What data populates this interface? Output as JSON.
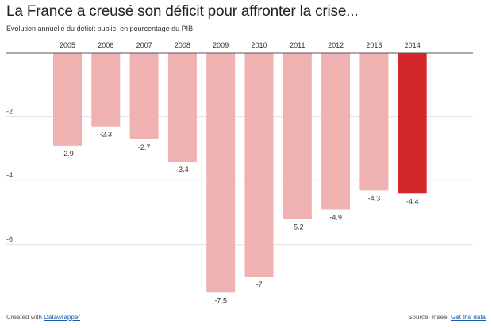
{
  "title": "La France a creusé son déficit pour affronter la crise...",
  "subtitle": "Évolution annuelle du déficit public, en pourcentage du PIB",
  "footer": {
    "created_prefix": "Created with ",
    "created_link": "Datawrapper",
    "source_prefix": "Source: Insee, ",
    "source_link": "Get the data"
  },
  "colors": {
    "bar": "#efb1b1",
    "bar_highlight": "#d3272c",
    "grid": "#e2e2e2",
    "baseline": "#555555"
  },
  "chart_data": {
    "type": "bar",
    "title": "La France a creusé son déficit pour affronter la crise...",
    "subtitle": "Évolution annuelle du déficit public, en pourcentage du PIB",
    "categories": [
      "2005",
      "2006",
      "2007",
      "2008",
      "2009",
      "2010",
      "2011",
      "2012",
      "2013",
      "2014"
    ],
    "values": [
      -2.9,
      -2.3,
      -2.7,
      -3.4,
      -7.5,
      -7,
      -5.2,
      -4.9,
      -4.3,
      -4.4
    ],
    "value_labels": [
      "-2.9",
      "-2.3",
      "-2.7",
      "-3.4",
      "-7.5",
      "-7",
      "-5.2",
      "-4.9",
      "-4.3",
      "-4.4"
    ],
    "highlight": "2014",
    "yticks": [
      -2,
      -4,
      -6
    ],
    "ytick_labels": [
      "-2",
      "-4",
      "-6"
    ],
    "ylim": [
      -7.5,
      0
    ],
    "xlabel": "",
    "ylabel": "",
    "grid": true,
    "legend": "none",
    "category_labels_position": "top"
  }
}
